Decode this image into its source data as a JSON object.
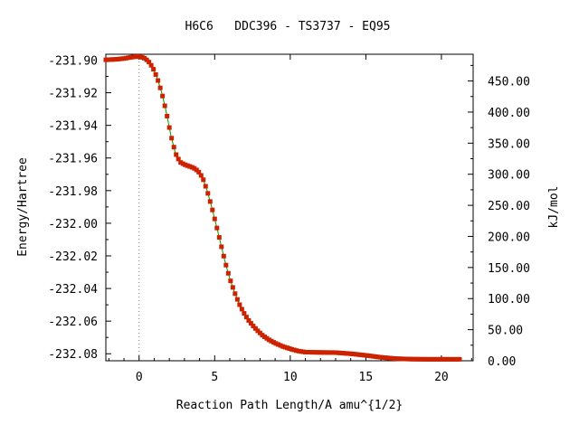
{
  "chart_data": {
    "type": "line",
    "title": "H6C6   DDC396 - TS3737 - EQ95",
    "xlabel": "Reaction Path Length/A amu^{1/2}",
    "ylabel": "Energy/Hartree",
    "y2label": "kJ/mol",
    "xlim": [
      -2.2,
      22.1
    ],
    "ylim": [
      -232.0843,
      -231.8964
    ],
    "y2lim": [
      0,
      493
    ],
    "x_ticks": [
      "0",
      "5",
      "10",
      "15",
      "20"
    ],
    "x_tick_values": [
      0,
      5,
      10,
      15,
      20
    ],
    "y_ticks": [
      "-231.90",
      "-231.92",
      "-231.94",
      "-231.96",
      "-231.98",
      "-232.00",
      "-232.02",
      "-232.04",
      "-232.06",
      "-232.08"
    ],
    "y_tick_values": [
      -231.9,
      -231.92,
      -231.94,
      -231.96,
      -231.98,
      -232.0,
      -232.02,
      -232.04,
      -232.06,
      -232.08
    ],
    "y2_ticks": [
      "0.00",
      "50.00",
      "100.00",
      "150.00",
      "200.00",
      "250.00",
      "300.00",
      "350.00",
      "400.00",
      "450.00"
    ],
    "y2_tick_values": [
      0,
      50,
      100,
      150,
      200,
      250,
      300,
      350,
      400,
      450
    ],
    "ts_marker_x": 0,
    "grid": false,
    "legend": "none",
    "colors": {
      "line": "#009900",
      "points": "#cc2200"
    },
    "series": [
      {
        "x": [
          -2.2,
          -1.5,
          -1.0,
          -0.5,
          -0.2,
          0.0,
          0.3,
          0.6,
          0.9,
          1.2,
          1.5,
          1.8,
          2.1,
          2.4,
          2.7,
          3.0,
          3.3,
          3.6,
          3.9,
          4.2,
          4.5,
          4.8,
          5.1,
          5.4,
          5.7,
          6.0,
          6.3,
          6.6,
          6.9,
          7.2,
          7.5,
          7.8,
          8.2,
          8.6,
          9.0,
          9.5,
          10.0,
          10.5,
          11.0,
          12.0,
          13.0,
          14.0,
          15.0,
          16.0,
          17.0,
          18.0,
          19.0,
          20.0,
          21.0,
          21.3
        ],
        "y": [
          -231.8998,
          -231.8995,
          -231.899,
          -231.8982,
          -231.8978,
          -231.8978,
          -231.8985,
          -231.9005,
          -231.9045,
          -231.911,
          -231.92,
          -231.932,
          -231.946,
          -231.957,
          -231.9625,
          -231.964,
          -231.965,
          -231.966,
          -231.968,
          -231.972,
          -231.98,
          -231.99,
          -232.001,
          -232.0125,
          -232.024,
          -232.034,
          -232.042,
          -232.049,
          -232.0545,
          -232.059,
          -232.0625,
          -232.0655,
          -232.069,
          -232.0715,
          -232.0735,
          -232.0755,
          -232.077,
          -232.0783,
          -232.079,
          -232.0792,
          -232.0793,
          -232.08,
          -232.081,
          -232.0822,
          -232.083,
          -232.0833,
          -232.0834,
          -232.0834,
          -232.0834,
          -232.0834
        ]
      }
    ]
  }
}
